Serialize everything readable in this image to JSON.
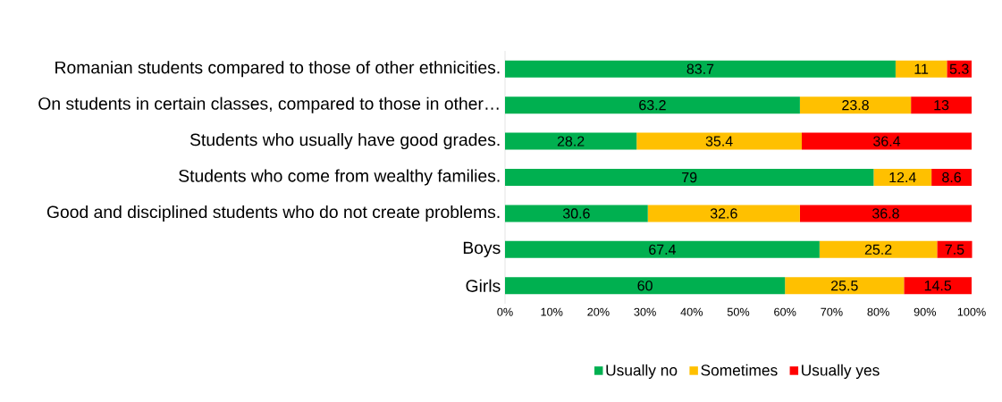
{
  "chart_data": {
    "type": "bar",
    "orientation": "horizontal",
    "stacked": true,
    "data_labels": true,
    "legend": "bottom",
    "categories": [
      "Romanian students compared to those of other ethnicities.",
      "On students in certain classes, compared to those in other…",
      "Students who usually have good grades.",
      "Students who come from wealthy families.",
      "Good and disciplined students who do not create problems.",
      "Boys",
      "Girls"
    ],
    "series": [
      {
        "name": "Usually no",
        "color": "#00b050",
        "values": [
          83.7,
          63.2,
          28.2,
          79,
          30.6,
          67.4,
          60
        ]
      },
      {
        "name": "Sometimes",
        "color": "#ffc000",
        "values": [
          11,
          23.8,
          35.4,
          12.4,
          32.6,
          25.2,
          25.5
        ]
      },
      {
        "name": "Usually yes",
        "color": "#ff0000",
        "values": [
          5.3,
          13,
          36.4,
          8.6,
          36.8,
          7.5,
          14.5
        ]
      }
    ],
    "xlim": [
      0,
      100
    ],
    "xticks": [
      {
        "value": 0,
        "label": "0%"
      },
      {
        "value": 10,
        "label": "10%"
      },
      {
        "value": 20,
        "label": "20%"
      },
      {
        "value": 30,
        "label": "30%"
      },
      {
        "value": 40,
        "label": "40%"
      },
      {
        "value": 50,
        "label": "50%"
      },
      {
        "value": 60,
        "label": "60%"
      },
      {
        "value": 70,
        "label": "70%"
      },
      {
        "value": 80,
        "label": "80%"
      },
      {
        "value": 90,
        "label": "90%"
      },
      {
        "value": 100,
        "label": "100%"
      }
    ]
  }
}
